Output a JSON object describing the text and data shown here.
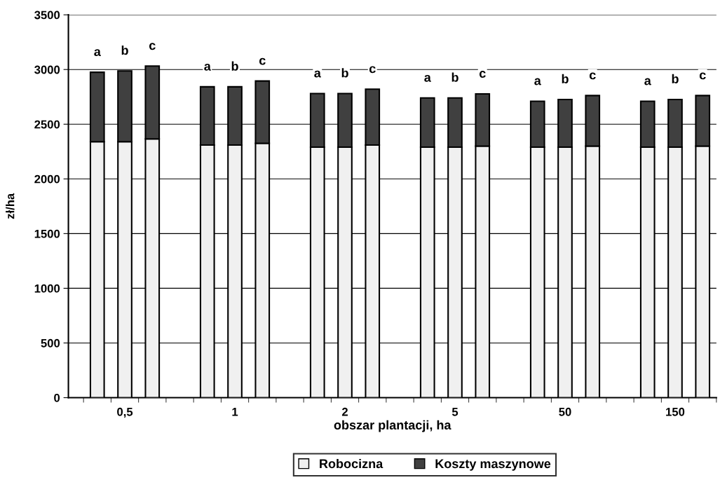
{
  "chart_data": {
    "type": "bar",
    "stacked": true,
    "xlabel": "obszar plantacji, ha",
    "ylabel": "zł/ha",
    "categories": [
      null,
      "0,5",
      null,
      null,
      null,
      "1",
      null,
      null,
      null,
      "2",
      null,
      null,
      null,
      "5",
      null,
      null,
      null,
      "50",
      null,
      null,
      null,
      "150",
      null
    ],
    "series": [
      {
        "name": "Robocizna",
        "color": "#f0f0f0",
        "values": [
          2340,
          2340,
          2365,
          null,
          2310,
          2310,
          2325,
          null,
          2290,
          2290,
          2310,
          null,
          2290,
          2290,
          2300,
          null,
          2290,
          2290,
          2300,
          null,
          2290,
          2290,
          2300
        ]
      },
      {
        "name": "Koszty maszynowe",
        "color": "#404040",
        "values": [
          635,
          647,
          667,
          null,
          532,
          532,
          570,
          null,
          490,
          490,
          510,
          null,
          450,
          450,
          477,
          null,
          420,
          436,
          462,
          null,
          420,
          436,
          462
        ],
        "value_labels": [
          "a",
          "b",
          "c",
          null,
          "a",
          "b",
          "c",
          null,
          "a",
          "b",
          "c",
          null,
          "a",
          "b",
          "c",
          null,
          "a",
          "b",
          "c",
          null,
          "a",
          "b",
          "c"
        ]
      }
    ],
    "ylim": [
      0,
      3500
    ],
    "yticks": [
      0,
      500,
      1000,
      1500,
      2000,
      2500,
      3000,
      3500
    ],
    "grid": "y",
    "legend": "bottom"
  }
}
